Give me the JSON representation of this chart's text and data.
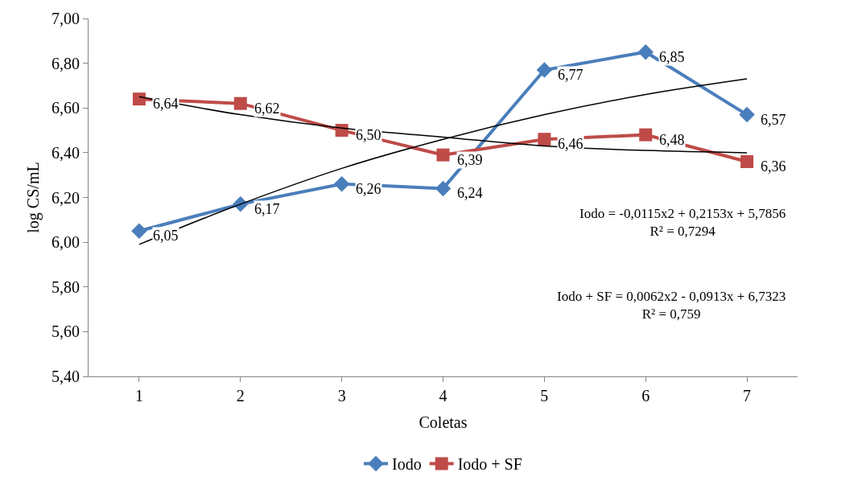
{
  "chart_data": {
    "type": "line",
    "xlabel": "Coletas",
    "ylabel": "log CS/mL",
    "x": [
      1,
      2,
      3,
      4,
      5,
      6,
      7
    ],
    "xlim": [
      0.5,
      7.5
    ],
    "xticks": [
      1,
      2,
      3,
      4,
      5,
      6,
      7
    ],
    "ylim": [
      5.4,
      7.0
    ],
    "yticks": [
      {
        "value": 5.4,
        "label": "5,40"
      },
      {
        "value": 5.6,
        "label": "5,60"
      },
      {
        "value": 5.8,
        "label": "5,80"
      },
      {
        "value": 6.0,
        "label": "6,00"
      },
      {
        "value": 6.2,
        "label": "6,20"
      },
      {
        "value": 6.4,
        "label": "6,40"
      },
      {
        "value": 6.6,
        "label": "6,60"
      },
      {
        "value": 6.8,
        "label": "6,80"
      },
      {
        "value": 7.0,
        "label": "7,00"
      }
    ],
    "grid": false,
    "legend": "bottom",
    "series": [
      {
        "name": "Iodo",
        "color": "#4a7ebb",
        "marker": "diamond",
        "values": [
          6.05,
          6.17,
          6.26,
          6.24,
          6.77,
          6.85,
          6.57
        ],
        "value_labels": [
          "6,05",
          "6,17",
          "6,26",
          "6,24",
          "6,77",
          "6,85",
          "6,57"
        ]
      },
      {
        "name": "Iodo + SF",
        "color": "#be4b48",
        "marker": "square",
        "values": [
          6.64,
          6.62,
          6.5,
          6.39,
          6.46,
          6.48,
          6.36
        ],
        "value_labels": [
          "6,64",
          "6,62",
          "6,50",
          "6,39",
          "6,46",
          "6,48",
          "6,36"
        ]
      },
      {
        "type": "line",
        "color": "#000000",
        "marker": "none",
        "x": [
          1,
          2,
          3,
          4,
          5,
          6,
          7
        ],
        "values": [
          5.99,
          6.17,
          6.33,
          6.46,
          6.57,
          6.66,
          6.73
        ]
      },
      {
        "type": "line",
        "color": "#000000",
        "marker": "none",
        "x": [
          1,
          2,
          3,
          4,
          5,
          6,
          7
        ],
        "values": [
          6.65,
          6.57,
          6.51,
          6.47,
          6.43,
          6.41,
          6.4
        ]
      }
    ],
    "annotations": [
      "Iodo = -0,0115x2 + 0,2153x + 5,7856\nR² = 0,7294",
      "Iodo + SF = 0,0062x2 - 0,0913x + 6,7323\nR² = 0,759"
    ]
  }
}
